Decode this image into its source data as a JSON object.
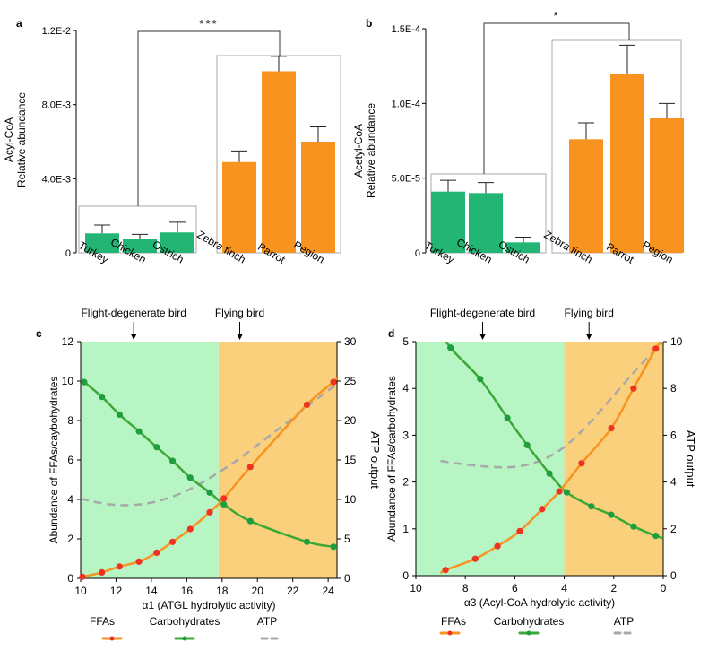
{
  "colors": {
    "green": "#22b573",
    "orange": "#f7931e",
    "green_line": "#3aaa35",
    "orange_line": "#f7931e",
    "atp": "#a8a8a8",
    "red_dot": "#ee3323",
    "green_dot": "#1e9e3e",
    "bg_green": "#b8f5c4",
    "bg_orange": "#fad07c",
    "box": "#aaaaaa",
    "bracket": "#333333"
  },
  "chart_data": [
    {
      "panel": "a",
      "type": "bar",
      "ylabel_lines": [
        "Acyl-CoA",
        "Relative abundance"
      ],
      "yticks": [
        "1.2E-2",
        "8.0E-3",
        "4.0E-3",
        "0"
      ],
      "ytick_values": [
        0.012,
        0.008,
        0.004,
        0
      ],
      "ylim": [
        0,
        0.012
      ],
      "categories": [
        "Turkey",
        "Chicken",
        "Ostrich",
        "Zebra finch",
        "Parrot",
        "Pegion"
      ],
      "values": [
        0.00105,
        0.00075,
        0.0011,
        0.0049,
        0.0098,
        0.006
      ],
      "errors": [
        0.00045,
        0.00025,
        0.00055,
        0.0006,
        0.0008,
        0.0008
      ],
      "groups": [
        "flight-degenerate",
        "flight-degenerate",
        "flight-degenerate",
        "flying",
        "flying",
        "flying"
      ],
      "significance": "***"
    },
    {
      "panel": "b",
      "type": "bar",
      "ylabel_lines": [
        "Acetyl-CoA",
        "Relative abundance"
      ],
      "yticks": [
        "1.5E-4",
        "1.0E-4",
        "5.0E-5",
        "0"
      ],
      "ytick_values": [
        0.00015,
        0.0001,
        5e-05,
        0
      ],
      "ylim": [
        0,
        0.00015
      ],
      "categories": [
        "Turkey",
        "Chicken",
        "Ostrich",
        "Zebra finch",
        "Parrot",
        "Pegion"
      ],
      "values": [
        4.1e-05,
        4e-05,
        7e-06,
        7.6e-05,
        0.00012,
        9e-05
      ],
      "errors": [
        7.5e-06,
        7e-06,
        3.5e-06,
        1.1e-05,
        1.9e-05,
        1e-05
      ],
      "groups": [
        "flight-degenerate",
        "flight-degenerate",
        "flight-degenerate",
        "flying",
        "flying",
        "flying"
      ],
      "significance": "*"
    },
    {
      "panel": "c",
      "type": "line",
      "xlabel": "α1 (ATGL hydrolytic activity)",
      "ylabel": "Abundance of FFAs/caybohydrates",
      "y2label": "ATP output",
      "xlim": [
        10,
        24.5
      ],
      "ylim": [
        0,
        12
      ],
      "y2lim": [
        0,
        30
      ],
      "xticks": [
        10,
        12,
        14,
        16,
        18,
        20,
        22,
        24
      ],
      "yticks": [
        0,
        2,
        4,
        6,
        8,
        10,
        12
      ],
      "y2ticks": [
        0,
        5,
        10,
        15,
        20,
        25,
        30
      ],
      "split_x": 17.8,
      "annot_left": "Flight-degenerate bird",
      "annot_left_x": 13.0,
      "annot_right": "Flying bird",
      "annot_right_x": 19.0,
      "series": [
        {
          "name": "FFAs",
          "x": [
            10.1,
            11.2,
            12.2,
            13.3,
            14.3,
            15.2,
            16.2,
            17.3,
            18.1,
            19.6,
            22.8,
            24.3
          ],
          "y": [
            0.08,
            0.3,
            0.6,
            0.85,
            1.3,
            1.85,
            2.5,
            3.35,
            4.05,
            5.65,
            8.8,
            9.95
          ]
        },
        {
          "name": "Carbohydrates",
          "x": [
            10.2,
            11.2,
            12.2,
            13.3,
            14.3,
            15.2,
            16.2,
            17.3,
            18.1,
            19.6,
            22.8,
            24.3
          ],
          "y": [
            9.95,
            9.2,
            8.3,
            7.45,
            6.65,
            5.95,
            5.1,
            4.35,
            3.75,
            2.9,
            1.85,
            1.6
          ]
        },
        {
          "name": "ATP",
          "x": [
            10.0,
            11.0,
            12.0,
            13.0,
            14.0,
            15.0,
            16.0,
            17.0,
            18.0,
            19.0,
            20.0,
            21.0,
            22.0,
            23.0,
            24.0,
            24.5
          ],
          "y2": [
            10.1,
            9.6,
            9.3,
            9.3,
            9.6,
            10.2,
            11.1,
            12.3,
            13.7,
            15.2,
            16.9,
            18.6,
            20.3,
            22.1,
            23.8,
            24.6
          ]
        }
      ]
    },
    {
      "panel": "d",
      "type": "line",
      "xlabel": "α3 (Acyl-CoA hydrolytic activity)",
      "ylabel": "Abundance of FFAs/carbohydrates",
      "y2label": "ATP output",
      "xlim": [
        10,
        0
      ],
      "ylim": [
        0,
        5
      ],
      "y2lim": [
        0,
        10
      ],
      "xticks": [
        10,
        8,
        6,
        4,
        2,
        0
      ],
      "yticks": [
        0,
        1,
        2,
        3,
        4,
        5
      ],
      "y2ticks": [
        0,
        2,
        4,
        6,
        8,
        10
      ],
      "split_x": 4.0,
      "annot_left": "Flight-degenerate bird",
      "annot_left_x": 7.3,
      "annot_right": "Flying bird",
      "annot_right_x": 3.0,
      "series": [
        {
          "name": "FFAs",
          "x": [
            8.8,
            7.6,
            6.7,
            5.8,
            4.9,
            4.2,
            3.3,
            2.1,
            1.2,
            0.3
          ],
          "y": [
            0.12,
            0.36,
            0.63,
            0.95,
            1.42,
            1.8,
            2.4,
            3.15,
            4.0,
            4.85
          ]
        },
        {
          "name": "Carbohydrates",
          "x": [
            8.6,
            7.4,
            6.3,
            5.5,
            4.6,
            3.9,
            2.9,
            2.1,
            1.2,
            0.3
          ],
          "y": [
            4.87,
            4.2,
            3.37,
            2.79,
            2.18,
            1.78,
            1.48,
            1.3,
            1.05,
            0.85
          ]
        },
        {
          "name": "ATP",
          "x": [
            9.0,
            8.0,
            7.0,
            6.0,
            5.0,
            4.0,
            3.0,
            2.0,
            1.0,
            0.0
          ],
          "y2": [
            4.9,
            4.75,
            4.65,
            4.65,
            4.9,
            5.5,
            6.5,
            7.7,
            8.9,
            10.0
          ]
        }
      ]
    }
  ],
  "legend": {
    "ffas": "FFAs",
    "carbohydrates": "Carbohydrates",
    "atp": "ATP"
  }
}
